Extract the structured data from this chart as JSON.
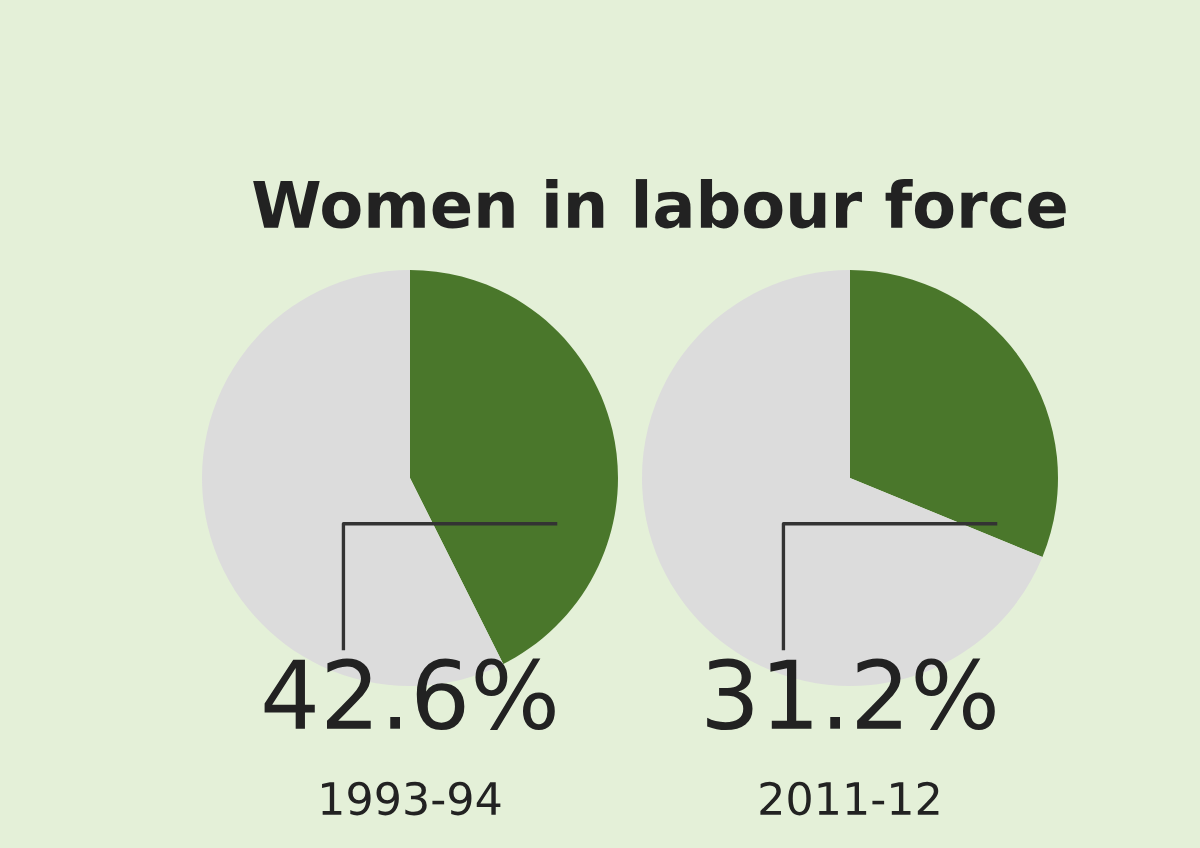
{
  "chart_data": [
    {
      "type": "pie",
      "title": "Women in labour force",
      "xlabel": "1993-94",
      "categories": [
        null,
        null
      ],
      "values": [
        42.6,
        57.4
      ],
      "colors": [
        "#4a772b",
        "#dcdcdc"
      ],
      "value_labels": [
        "42.6%",
        null
      ]
    },
    {
      "type": "pie",
      "xlabel": "2011-12",
      "categories": [
        null,
        null
      ],
      "values": [
        31.2,
        68.8
      ],
      "colors": [
        "#4a772b",
        "#dcdcdc"
      ],
      "value_labels": [
        "31.2%",
        null
      ]
    }
  ]
}
